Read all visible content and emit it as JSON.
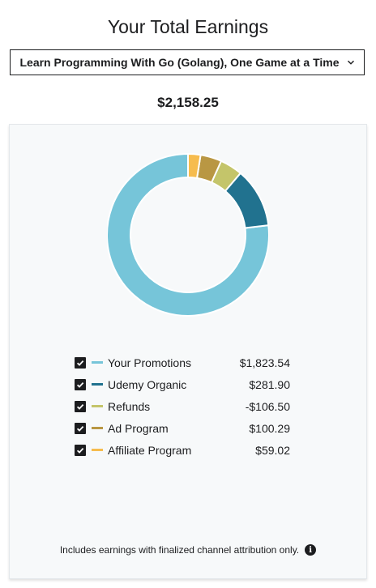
{
  "page": {
    "title": "Your Total Earnings",
    "course_select": {
      "selected": "Learn Programming With Go (Golang), One Game at a Time",
      "icon": "chevron-down-icon"
    },
    "total": "$2,158.25"
  },
  "chart_data": {
    "type": "pie",
    "variant": "donut",
    "title": "",
    "categories": [
      "Your Promotions",
      "Udemy Organic",
      "Refunds",
      "Ad Program",
      "Affiliate Program"
    ],
    "values": [
      1823.54,
      281.9,
      -106.5,
      100.29,
      59.02
    ],
    "value_labels": [
      "$1,823.54",
      "$281.90",
      "-$106.50",
      "$100.29",
      "$59.02"
    ],
    "colors": [
      "#76c5d9",
      "#21728f",
      "#c4c56a",
      "#b99743",
      "#f6bc4e"
    ],
    "checked": [
      true,
      true,
      true,
      true,
      true
    ],
    "legend_position": "bottom"
  },
  "footnote": {
    "text": "Includes earnings with finalized channel attribution only.",
    "icon": "info-icon"
  }
}
